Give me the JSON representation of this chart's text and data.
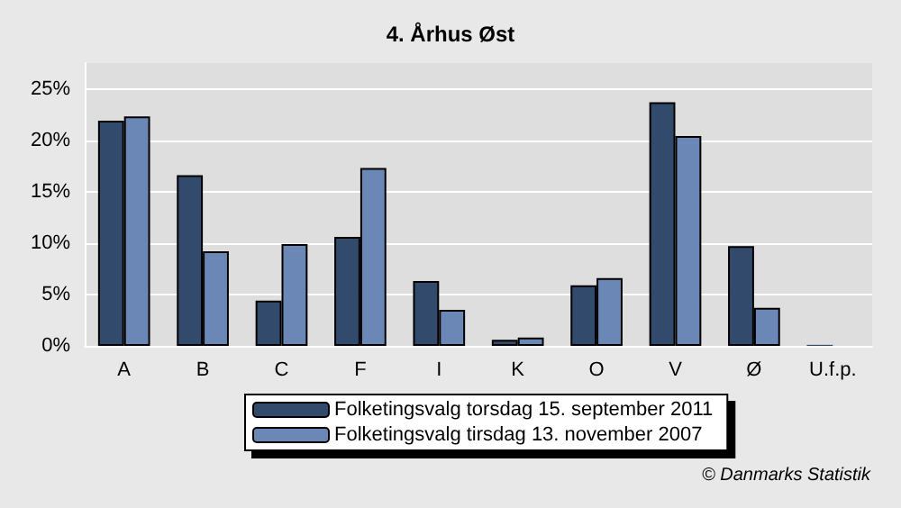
{
  "chart_data": {
    "type": "bar",
    "title": "4. Århus Øst",
    "categories": [
      "A",
      "B",
      "C",
      "F",
      "I",
      "K",
      "O",
      "V",
      "Ø",
      "U.f.p."
    ],
    "series": [
      {
        "name": "Folketingsvalg torsdag 15. september 2011",
        "color": "#324a6c",
        "values": [
          21.9,
          16.6,
          4.4,
          10.6,
          6.3,
          0.6,
          5.9,
          23.7,
          9.7,
          0.1
        ]
      },
      {
        "name": "Folketingsvalg tirsdag 13. november 2007",
        "color": "#6b87b5",
        "values": [
          22.3,
          9.2,
          9.9,
          17.3,
          3.5,
          0.8,
          6.6,
          20.4,
          3.7,
          null
        ]
      }
    ],
    "ylim": [
      0,
      27.5
    ],
    "yticks": [
      {
        "value": 0,
        "label": "0%"
      },
      {
        "value": 5,
        "label": "5%"
      },
      {
        "value": 10,
        "label": "10%"
      },
      {
        "value": 15,
        "label": "15%"
      },
      {
        "value": 20,
        "label": "20%"
      },
      {
        "value": 25,
        "label": "25%"
      }
    ],
    "grid": "y",
    "legend": "bottom",
    "annotations": [
      "© Danmarks Statistik"
    ]
  }
}
